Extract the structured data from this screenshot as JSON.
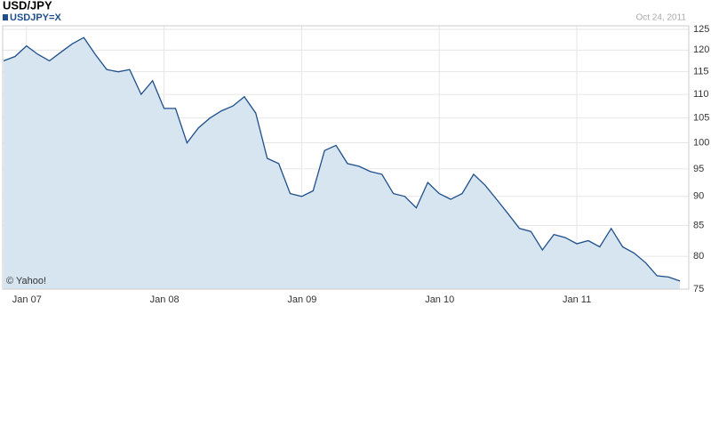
{
  "chart_data": {
    "type": "area",
    "title": "USD/JPY",
    "series_label": "USDJPY=X",
    "date": "Oct 24, 2011",
    "credit": "© Yahoo!",
    "categories": [
      null,
      null,
      "Jan 07",
      null,
      null,
      null,
      null,
      null,
      null,
      null,
      null,
      null,
      null,
      null,
      "Jan 08",
      null,
      null,
      null,
      null,
      null,
      null,
      null,
      null,
      null,
      null,
      null,
      "Jan 09",
      null,
      null,
      null,
      null,
      null,
      null,
      null,
      null,
      null,
      null,
      null,
      "Jan 10",
      null,
      null,
      null,
      null,
      null,
      null,
      null,
      null,
      null,
      null,
      null,
      "Jan 11",
      null,
      null,
      null,
      null,
      null,
      null,
      null,
      null,
      null
    ],
    "values": [
      117.5,
      118.5,
      121,
      119,
      117.5,
      119.5,
      121.5,
      123,
      119,
      115.5,
      115,
      115.5,
      110,
      113,
      107,
      107,
      100,
      103,
      105,
      106.5,
      107.5,
      109.5,
      106,
      97,
      96,
      90.5,
      90,
      91,
      98.5,
      99.5,
      96,
      95.5,
      94.5,
      94,
      90.5,
      90,
      88,
      92.5,
      90.5,
      89.5,
      90.5,
      94,
      92,
      89.5,
      87,
      84.5,
      84,
      81,
      83.5,
      83,
      82,
      82.5,
      81.5,
      84.5,
      81.5,
      80.5,
      79,
      77,
      76.8,
      76.2
    ],
    "color": "#1f4f8a",
    "fill": "#d6e5f0",
    "log": true,
    "grid": true,
    "ylim": [
      75,
      125
    ],
    "yticks": [
      75,
      80,
      85,
      90,
      95,
      100,
      105,
      110,
      115,
      120,
      125
    ]
  }
}
